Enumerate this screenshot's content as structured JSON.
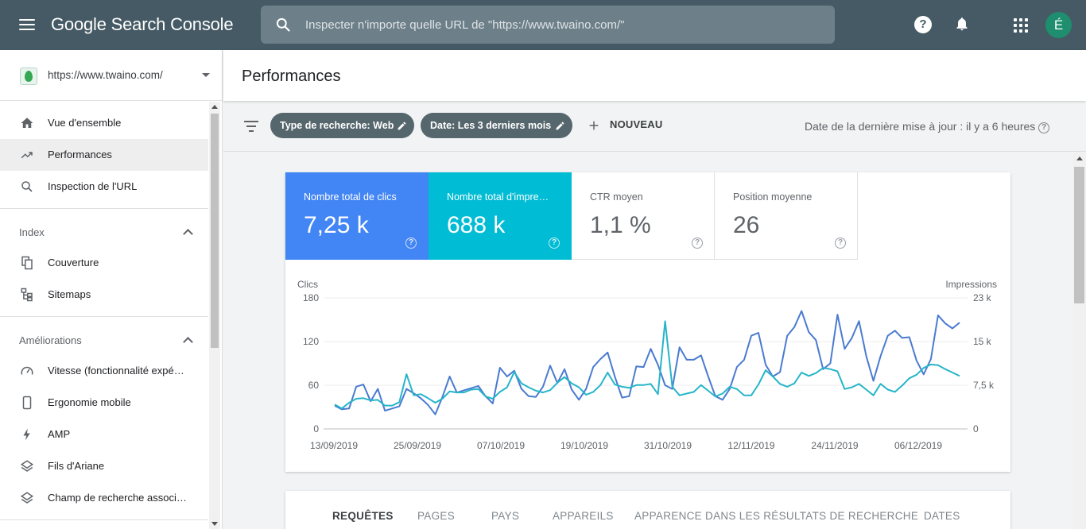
{
  "app": {
    "brand": "Google Search Console"
  },
  "search": {
    "placeholder": "Inspecter n'importe quelle URL de \"https://www.twaino.com/\""
  },
  "header_icons": [
    "help-icon",
    "bell-icon",
    "apps-icon"
  ],
  "user": {
    "initial": "É",
    "color": "#1e8e6e"
  },
  "property": {
    "url": "https://www.twaino.com/"
  },
  "sidebar": {
    "top_items": [
      {
        "label": "Vue d'ensemble",
        "icon": "home-icon"
      },
      {
        "label": "Performances",
        "icon": "trending-icon",
        "active": true
      },
      {
        "label": "Inspection de l'URL",
        "icon": "search-icon"
      }
    ],
    "sections": [
      {
        "title": "Index",
        "items": [
          {
            "label": "Couverture",
            "icon": "copy-icon"
          },
          {
            "label": "Sitemaps",
            "icon": "sitemap-icon"
          }
        ]
      },
      {
        "title": "Améliorations",
        "items": [
          {
            "label": "Vitesse (fonctionnalité expé…",
            "icon": "speed-icon"
          },
          {
            "label": "Ergonomie mobile",
            "icon": "mobile-icon"
          },
          {
            "label": "AMP",
            "icon": "bolt-icon"
          },
          {
            "label": "Fils d'Ariane",
            "icon": "layers-icon"
          },
          {
            "label": "Champ de recherche associ…",
            "icon": "layers-icon"
          }
        ]
      }
    ]
  },
  "page": {
    "title": "Performances"
  },
  "filters": {
    "chips": [
      "Type de recherche: Web",
      "Date: Les 3 derniers mois"
    ],
    "new_label": "NOUVEAU",
    "updated": "Date de la dernière mise à jour : il y a 6 heures"
  },
  "metrics": [
    {
      "label": "Nombre total de clics",
      "value": "7,25 k",
      "color": "#4285f4"
    },
    {
      "label": "Nombre total d'impre…",
      "value": "688 k",
      "color": "#00bcd4"
    },
    {
      "label": "CTR moyen",
      "value": "1,1 %"
    },
    {
      "label": "Position moyenne",
      "value": "26"
    }
  ],
  "chart_data": {
    "type": "line",
    "left_axis": {
      "label": "Clics",
      "ticks": [
        "180",
        "120",
        "60",
        "0"
      ],
      "range": [
        0,
        180
      ]
    },
    "right_axis": {
      "label": "Impressions",
      "ticks": [
        "23 k",
        "15 k",
        "7,5 k",
        "0"
      ],
      "range": [
        0,
        23000
      ]
    },
    "x_tick_labels": [
      "13/09/2019",
      "25/09/2019",
      "07/10/2019",
      "19/10/2019",
      "31/10/2019",
      "12/11/2019",
      "24/11/2019",
      "06/12/2019"
    ],
    "grid": true,
    "series": [
      {
        "name": "Clics",
        "axis": "left",
        "color": "#4a7bd0",
        "values": [
          32,
          27,
          28,
          58,
          61,
          38,
          55,
          25,
          28,
          31,
          55,
          49,
          42,
          33,
          20,
          44,
          72,
          50,
          53,
          56,
          59,
          45,
          35,
          84,
          72,
          80,
          55,
          45,
          44,
          58,
          87,
          63,
          82,
          54,
          40,
          55,
          85,
          96,
          105,
          72,
          43,
          45,
          86,
          85,
          110,
          88,
          60,
          55,
          112,
          95,
          95,
          101,
          72,
          45,
          40,
          55,
          85,
          95,
          128,
          132,
          88,
          72,
          78,
          128,
          140,
          162,
          133,
          122,
          82,
          90,
          157,
          110,
          125,
          148,
          100,
          66,
          100,
          128,
          135,
          125,
          126,
          94,
          75,
          96,
          156,
          145,
          138,
          146
        ]
      },
      {
        "name": "Impressions",
        "axis": "right",
        "color": "#26b5c9",
        "values": [
          4300,
          3600,
          4600,
          5300,
          5400,
          5000,
          5100,
          4100,
          4100,
          4700,
          9600,
          5900,
          6100,
          5400,
          4600,
          5300,
          6600,
          6400,
          6400,
          6900,
          7000,
          5700,
          5300,
          6500,
          7300,
          10000,
          8000,
          7300,
          6700,
          6400,
          6800,
          8100,
          9100,
          8000,
          7300,
          6000,
          6500,
          7700,
          9900,
          7800,
          7400,
          7200,
          7700,
          7700,
          7900,
          6100,
          18900,
          7400,
          5900,
          6200,
          6500,
          7700,
          6700,
          5700,
          6200,
          7400,
          7000,
          5900,
          5900,
          7800,
          10300,
          9200,
          7900,
          7400,
          8000,
          9900,
          9300,
          9800,
          10700,
          10500,
          10100,
          7000,
          7300,
          7900,
          6900,
          5900,
          7900,
          6900,
          6500,
          7600,
          8900,
          9500,
          10700,
          11300,
          11200,
          10500,
          9900,
          9300
        ]
      }
    ]
  },
  "tabs": [
    "REQUÊTES",
    "PAGES",
    "PAYS",
    "APPAREILS",
    "APPARENCE DANS LES RÉSULTATS DE RECHERCHE",
    "DATES"
  ]
}
